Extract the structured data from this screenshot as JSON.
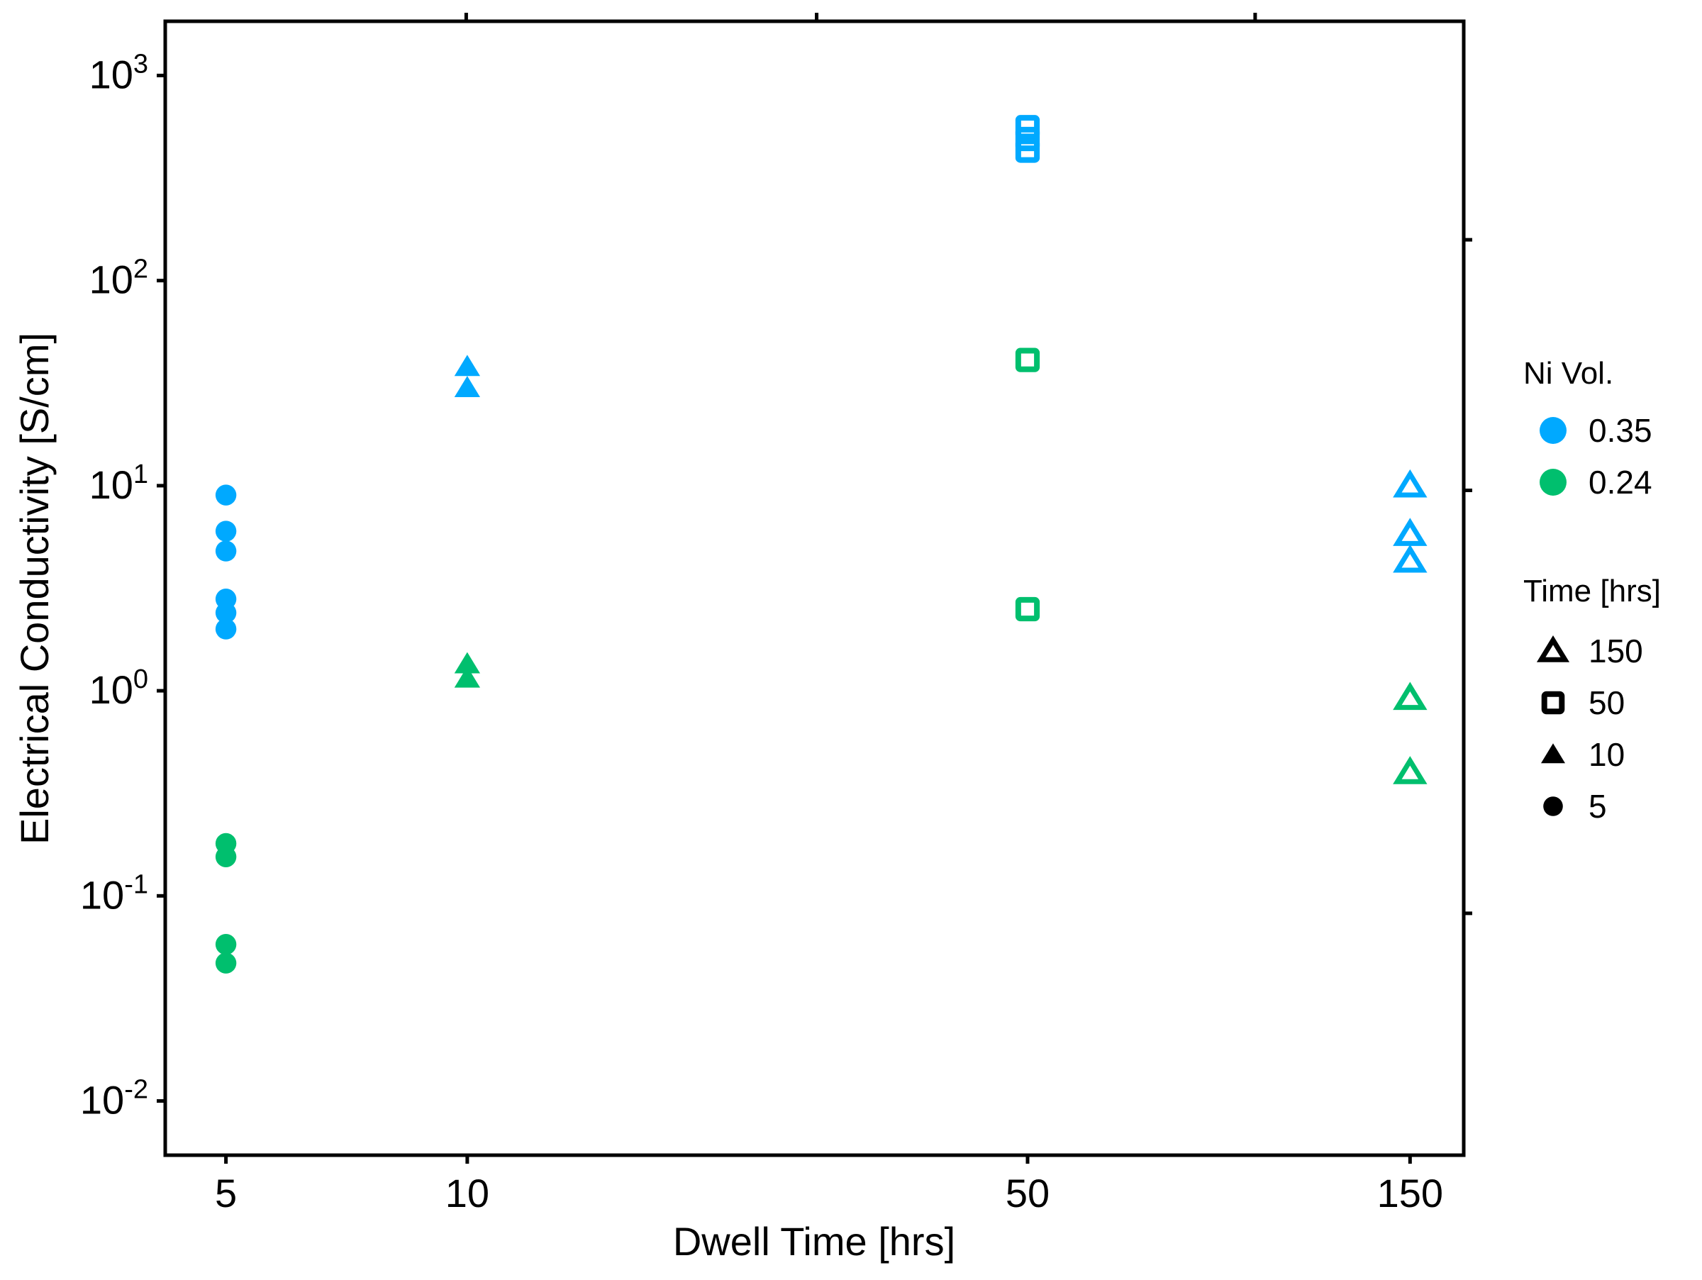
{
  "chart_data": {
    "type": "scatter",
    "xlabel": "Dwell Time [hrs]",
    "ylabel": "Electrical Conductivity [S/cm]",
    "x_scale": "log",
    "y_scale": "log",
    "xlim": [
      4.2,
      175
    ],
    "ylim": [
      0.00544,
      1838
    ],
    "x_ticks": [
      5,
      10,
      50,
      150
    ],
    "x_tick_labels": [
      "5",
      "10",
      "50",
      "150"
    ],
    "y_ticks": [
      0.01,
      0.1,
      1,
      10,
      100,
      1000
    ],
    "y_tick_labels": [
      {
        "base": "10",
        "exp": "-2"
      },
      {
        "base": "10",
        "exp": "-1"
      },
      {
        "base": "10",
        "exp": "0"
      },
      {
        "base": "10",
        "exp": "1"
      },
      {
        "base": "10",
        "exp": "2"
      },
      {
        "base": "10",
        "exp": "3"
      }
    ],
    "grid": false,
    "legend_position": "right",
    "color_legend": {
      "title": "Ni Vol.",
      "items": [
        {
          "label": "0.35",
          "color": "#00A9FF"
        },
        {
          "label": "0.24",
          "color": "#00BF6E"
        }
      ]
    },
    "shape_legend": {
      "title": "Time [hrs]",
      "items": [
        {
          "label": "150",
          "shape": "triangle-open"
        },
        {
          "label": "50",
          "shape": "square-open"
        },
        {
          "label": "10",
          "shape": "triangle-filled"
        },
        {
          "label": "5",
          "shape": "circle-filled"
        }
      ]
    },
    "series": [
      {
        "x": 5,
        "values": [
          9.0,
          6.0,
          4.8,
          2.8,
          2.4,
          2.0
        ],
        "color": "#00A9FF",
        "shape": "circle-filled"
      },
      {
        "x": 5,
        "values": [
          0.18,
          0.155,
          0.058,
          0.047
        ],
        "color": "#00BF6E",
        "shape": "circle-filled"
      },
      {
        "x": 10,
        "values": [
          38,
          30
        ],
        "color": "#00A9FF",
        "shape": "triangle-filled"
      },
      {
        "x": 10,
        "values": [
          1.35,
          1.15
        ],
        "color": "#00BF6E",
        "shape": "triangle-filled"
      },
      {
        "x": 50,
        "values": [
          560,
          490,
          430
        ],
        "color": "#00A9FF",
        "shape": "square-open"
      },
      {
        "x": 50,
        "values": [
          41,
          2.5
        ],
        "color": "#00BF6E",
        "shape": "square-open"
      },
      {
        "x": 150,
        "values": [
          10,
          5.8,
          4.3
        ],
        "color": "#00A9FF",
        "shape": "triangle-open"
      },
      {
        "x": 150,
        "values": [
          0.92,
          0.4
        ],
        "color": "#00BF6E",
        "shape": "triangle-open"
      }
    ]
  }
}
